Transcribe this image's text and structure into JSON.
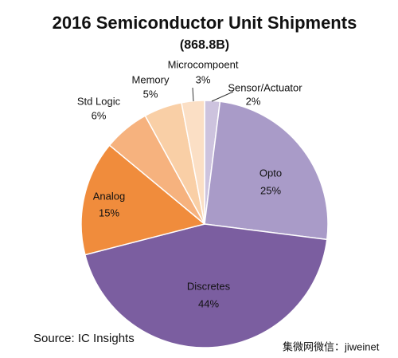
{
  "chart_data": {
    "type": "pie",
    "title": "2016 Semiconductor Unit Shipments",
    "subtitle": "(868.8B)",
    "categories": [
      "Sensor/Actuator",
      "Opto",
      "Discretes",
      "Analog",
      "Std Logic",
      "Memory",
      "Microcompoent"
    ],
    "values": [
      2,
      25,
      44,
      15,
      6,
      5,
      3
    ],
    "value_labels": [
      "2%",
      "25%",
      "44%",
      "15%",
      "6%",
      "5%",
      "3%"
    ],
    "colors": [
      "#cdc3de",
      "#a99bc8",
      "#7b5ea0",
      "#f08c3c",
      "#f6b27e",
      "#f9cfa6",
      "#fbdfc5"
    ],
    "source": "Source:  IC Insights",
    "watermark": "集微网微信：jiweinet"
  }
}
